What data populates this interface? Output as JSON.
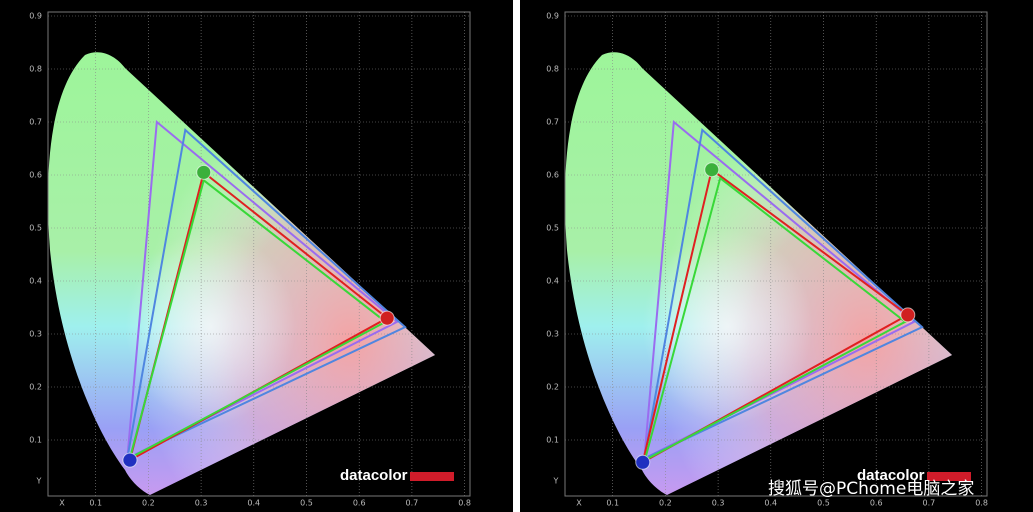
{
  "watermark": "搜狐号@PChome电脑之家",
  "chart_data": [
    {
      "type": "line",
      "xlabel": "X",
      "ylabel": "Y",
      "logo": "datacolor",
      "xlim": [
        0,
        0.8
      ],
      "ylim": [
        0,
        0.9
      ],
      "xticks": [
        0.1,
        0.2,
        0.3,
        0.4,
        0.5,
        0.6,
        0.7,
        0.8
      ],
      "yticks": [
        0.1,
        0.2,
        0.3,
        0.4,
        0.5,
        0.6,
        0.7,
        0.8,
        0.9
      ],
      "grid": true,
      "series": [
        {
          "color": "#9a6cf0",
          "x": [
            0.216,
            0.672,
            0.16
          ],
          "values": [
            0.7,
            0.323,
            0.065
          ]
        },
        {
          "color": "#4f86e0",
          "x": [
            0.27,
            0.687,
            0.16
          ],
          "values": [
            0.685,
            0.313,
            0.065
          ]
        },
        {
          "color": "#e02020",
          "x": [
            0.305,
            0.653,
            0.165
          ],
          "values": [
            0.605,
            0.33,
            0.062
          ]
        },
        {
          "color": "#38d838",
          "x": [
            0.305,
            0.65,
            0.165
          ],
          "values": [
            0.59,
            0.323,
            0.066
          ]
        }
      ]
    },
    {
      "type": "line",
      "xlabel": "X",
      "ylabel": "Y",
      "logo": "datacolor",
      "xlim": [
        0,
        0.8
      ],
      "ylim": [
        0,
        0.9
      ],
      "xticks": [
        0.1,
        0.2,
        0.3,
        0.4,
        0.5,
        0.6,
        0.7,
        0.8
      ],
      "yticks": [
        0.1,
        0.2,
        0.3,
        0.4,
        0.5,
        0.6,
        0.7,
        0.8,
        0.9
      ],
      "grid": true,
      "series": [
        {
          "color": "#9a6cf0",
          "x": [
            0.216,
            0.672,
            0.16
          ],
          "values": [
            0.7,
            0.323,
            0.065
          ]
        },
        {
          "color": "#4f86e0",
          "x": [
            0.27,
            0.687,
            0.16
          ],
          "values": [
            0.685,
            0.313,
            0.065
          ]
        },
        {
          "color": "#e02020",
          "x": [
            0.288,
            0.66,
            0.157
          ],
          "values": [
            0.61,
            0.336,
            0.058
          ]
        },
        {
          "color": "#38d838",
          "x": [
            0.304,
            0.655,
            0.161
          ],
          "values": [
            0.594,
            0.323,
            0.062
          ]
        }
      ]
    }
  ]
}
